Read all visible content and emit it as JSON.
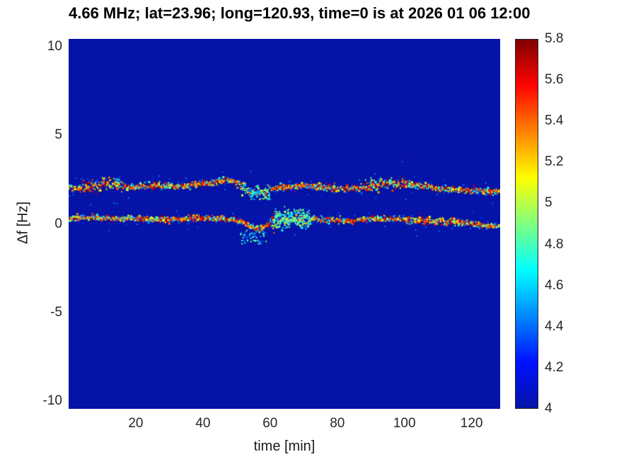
{
  "chart_data": {
    "type": "heatmap",
    "title": "4.66 MHz;  lat=23.96; long=120.93, time=0 is at 2026 01 06 12:00",
    "xlabel": "time [min]",
    "ylabel": "Δf [Hz]",
    "xlim": [
      0,
      128.5
    ],
    "ylim": [
      -10.45,
      10.45
    ],
    "x_ticks": [
      20,
      40,
      60,
      80,
      100,
      120
    ],
    "y_ticks": [
      -10,
      -5,
      0,
      5,
      10
    ],
    "grid": false,
    "colorbar": {
      "min": 4,
      "max": 5.8,
      "ticks": [
        4,
        4.2,
        4.4,
        4.6,
        4.8,
        5,
        5.2,
        5.4,
        5.6,
        5.8
      ],
      "colormap": "jet",
      "position": "right"
    },
    "background_value": 4,
    "traces": [
      {
        "name": "upper-doppler-trace",
        "jitter": 0.09,
        "points": [
          [
            0,
            2.05
          ],
          [
            4,
            2.0
          ],
          [
            8,
            2.15
          ],
          [
            12,
            2.3
          ],
          [
            15,
            2.2
          ],
          [
            18,
            2.05
          ],
          [
            22,
            2.1
          ],
          [
            26,
            2.2
          ],
          [
            30,
            2.15
          ],
          [
            34,
            2.1
          ],
          [
            38,
            2.2
          ],
          [
            43,
            2.35
          ],
          [
            46,
            2.5
          ],
          [
            49,
            2.4
          ],
          [
            52,
            2.0
          ],
          [
            55,
            1.75
          ],
          [
            58,
            1.85
          ],
          [
            62,
            2.0
          ],
          [
            66,
            2.1
          ],
          [
            70,
            2.15
          ],
          [
            74,
            2.1
          ],
          [
            78,
            2.0
          ],
          [
            82,
            2.0
          ],
          [
            86,
            2.05
          ],
          [
            90,
            2.1
          ],
          [
            94,
            2.3
          ],
          [
            98,
            2.35
          ],
          [
            102,
            2.25
          ],
          [
            106,
            2.1
          ],
          [
            110,
            2.0
          ],
          [
            114,
            1.95
          ],
          [
            118,
            1.9
          ],
          [
            122,
            1.85
          ],
          [
            126,
            1.8
          ],
          [
            128.5,
            1.8
          ]
        ],
        "regions": [
          {
            "t0": 4,
            "t1": 16,
            "spread": 2.0
          },
          {
            "t0": 50,
            "t1": 60,
            "spread": 1.6,
            "palette": "cool"
          },
          {
            "t0": 88,
            "t1": 100,
            "spread": 1.8
          }
        ]
      },
      {
        "name": "lower-doppler-trace",
        "jitter": 0.08,
        "points": [
          [
            0,
            0.3
          ],
          [
            6,
            0.35
          ],
          [
            12,
            0.3
          ],
          [
            18,
            0.3
          ],
          [
            24,
            0.25
          ],
          [
            30,
            0.25
          ],
          [
            36,
            0.3
          ],
          [
            42,
            0.3
          ],
          [
            48,
            0.25
          ],
          [
            52,
            0.1
          ],
          [
            55,
            -0.2
          ],
          [
            57,
            -0.3
          ],
          [
            59,
            -0.1
          ],
          [
            61,
            0.1
          ],
          [
            64,
            0.25
          ],
          [
            68,
            0.3
          ],
          [
            72,
            0.3
          ],
          [
            76,
            0.25
          ],
          [
            80,
            0.2
          ],
          [
            84,
            0.15
          ],
          [
            88,
            0.25
          ],
          [
            92,
            0.3
          ],
          [
            96,
            0.3
          ],
          [
            100,
            0.25
          ],
          [
            104,
            0.2
          ],
          [
            108,
            0.15
          ],
          [
            112,
            0.1
          ],
          [
            116,
            0.05
          ],
          [
            120,
            0.0
          ],
          [
            124,
            -0.1
          ],
          [
            128.5,
            -0.15
          ]
        ],
        "regions": [
          {
            "t0": 60,
            "t1": 72,
            "spread": 2.8,
            "palette": "cool"
          },
          {
            "t0": 100,
            "t1": 112,
            "spread": 1.5
          }
        ]
      }
    ],
    "clouds": [
      {
        "t0": 51,
        "t1": 59,
        "f0": -1.15,
        "f1": -0.35,
        "count": 55,
        "value_range": [
          4.35,
          4.95
        ]
      },
      {
        "t0": 61,
        "t1": 72,
        "f0": -0.25,
        "f1": 0.85,
        "count": 140,
        "value_range": [
          4.5,
          5.05
        ]
      },
      {
        "t0": 54,
        "t1": 60,
        "f0": 1.35,
        "f1": 1.8,
        "count": 40,
        "value_range": [
          4.4,
          5.0
        ]
      }
    ]
  },
  "colors": {
    "figure_bg": "#ffffff",
    "title_text": "#000000",
    "axis_text": "#262626",
    "colorbar_border": "#262626",
    "colormap_stops": [
      [
        0,
        "#0513a6"
      ],
      [
        0.125,
        "#0011ff"
      ],
      [
        0.375,
        "#00ffff"
      ],
      [
        0.625,
        "#ffff00"
      ],
      [
        0.875,
        "#ff0500"
      ],
      [
        1,
        "#800000"
      ]
    ]
  }
}
